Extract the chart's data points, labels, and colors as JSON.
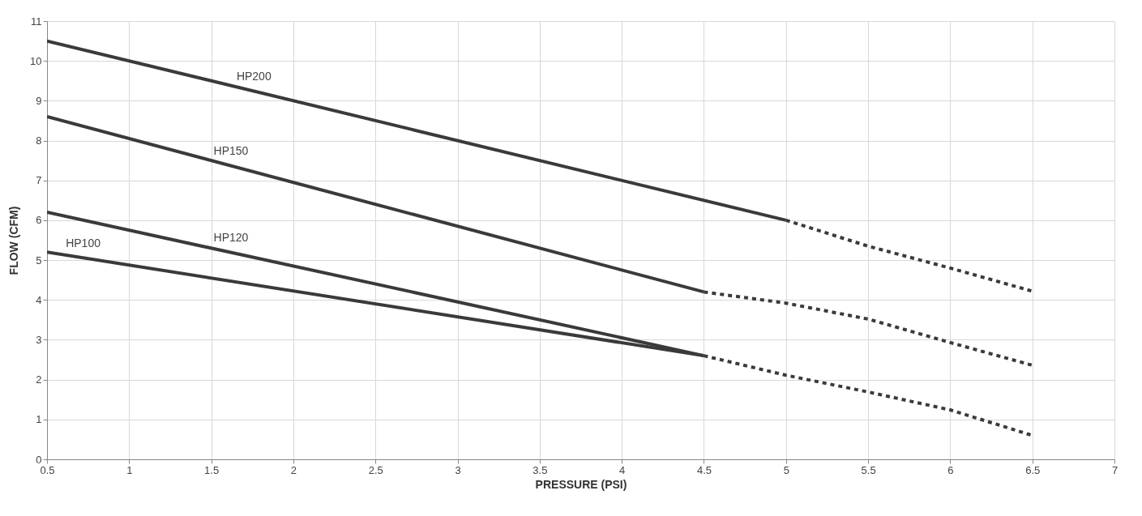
{
  "chart_data": {
    "type": "line",
    "xlabel": "PRESSURE (PSI)",
    "ylabel": "FLOW (CFM)",
    "xlim": [
      0.5,
      7
    ],
    "xticks": [
      0.5,
      1,
      1.5,
      2,
      2.5,
      3,
      3.5,
      4,
      4.5,
      5,
      5.5,
      6,
      6.5,
      7
    ],
    "ylim": [
      0,
      11
    ],
    "yticks": [
      0,
      1,
      2,
      3,
      4,
      5,
      6,
      7,
      8,
      9,
      10,
      11
    ],
    "grid": true,
    "legend": false,
    "marker": "none",
    "series": [
      {
        "name": "HP200",
        "color": "#3a3a3a",
        "line_style": "solid",
        "x": [
          0.5,
          5
        ],
        "values": [
          10.5,
          6.0
        ]
      },
      {
        "color": "#3a3a3a",
        "line_style": "dashed",
        "x": [
          5,
          5.5,
          6,
          6.5
        ],
        "values": [
          6.0,
          5.35,
          4.8,
          4.22
        ]
      },
      {
        "name": "HP150",
        "color": "#3a3a3a",
        "line_style": "solid",
        "x": [
          0.5,
          4.5
        ],
        "values": [
          8.6,
          4.2
        ]
      },
      {
        "color": "#3a3a3a",
        "line_style": "dashed",
        "x": [
          4.5,
          5,
          5.5,
          6,
          6.5
        ],
        "values": [
          4.2,
          3.92,
          3.52,
          2.93,
          2.36
        ]
      },
      {
        "name": "HP120",
        "color": "#3a3a3a",
        "line_style": "solid",
        "x": [
          0.5,
          4.5
        ],
        "values": [
          6.2,
          2.6
        ]
      },
      {
        "name": "HP100",
        "color": "#3a3a3a",
        "line_style": "solid",
        "x": [
          0.5,
          4.5
        ],
        "values": [
          5.2,
          2.6
        ]
      },
      {
        "color": "#3a3a3a",
        "line_style": "dashed",
        "x": [
          4.5,
          5,
          5.5,
          6,
          6.5
        ],
        "values": [
          2.6,
          2.11,
          1.69,
          1.24,
          0.6
        ]
      }
    ]
  }
}
